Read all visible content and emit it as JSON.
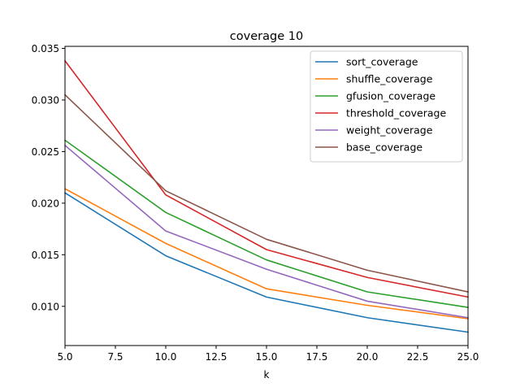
{
  "chart_data": {
    "type": "line",
    "title": "coverage 10",
    "xlabel": "k",
    "ylabel": "",
    "x": [
      5,
      10,
      15,
      20,
      25
    ],
    "xlim": [
      5,
      25
    ],
    "ylim": [
      0.0062,
      0.0352
    ],
    "xticks": [
      5.0,
      7.5,
      10.0,
      12.5,
      15.0,
      17.5,
      20.0,
      22.5,
      25.0
    ],
    "xtick_labels": [
      "5.0",
      "7.5",
      "10.0",
      "12.5",
      "15.0",
      "17.5",
      "20.0",
      "22.5",
      "25.0"
    ],
    "yticks": [
      0.01,
      0.015,
      0.02,
      0.025,
      0.03,
      0.035
    ],
    "ytick_labels": [
      "0.010",
      "0.015",
      "0.020",
      "0.025",
      "0.030",
      "0.035"
    ],
    "grid": false,
    "legend_position": "top-right",
    "series": [
      {
        "name": "sort_coverage",
        "color": "#1f77b4",
        "values": [
          0.021,
          0.0149,
          0.0109,
          0.0089,
          0.0075
        ]
      },
      {
        "name": "shuffle_coverage",
        "color": "#ff7f0e",
        "values": [
          0.0214,
          0.0161,
          0.0117,
          0.0101,
          0.0088
        ]
      },
      {
        "name": "gfusion_coverage",
        "color": "#2ca02c",
        "values": [
          0.0261,
          0.0191,
          0.0145,
          0.0114,
          0.0099
        ]
      },
      {
        "name": "threshold_coverage",
        "color": "#d62728",
        "values": [
          0.0338,
          0.0208,
          0.0155,
          0.0128,
          0.0109
        ]
      },
      {
        "name": "weight_coverage",
        "color": "#9467bd",
        "values": [
          0.0256,
          0.0173,
          0.0136,
          0.0105,
          0.0089
        ]
      },
      {
        "name": "base_coverage",
        "color": "#8c564b",
        "values": [
          0.0305,
          0.0212,
          0.0165,
          0.0135,
          0.0114
        ]
      }
    ]
  }
}
